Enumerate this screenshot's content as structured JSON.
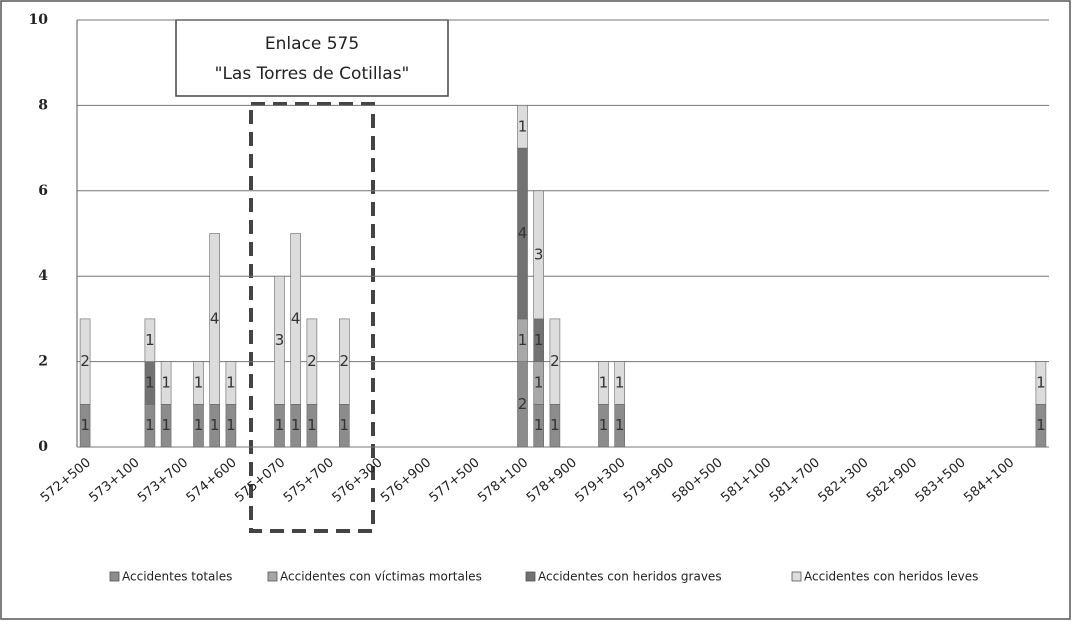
{
  "chart_data": {
    "type": "stacked_bar",
    "annotation": [
      "Enlace 575",
      "\"Las Torres de Cotillas\""
    ],
    "categories": [
      "572+500",
      null,
      null,
      "573+100",
      null,
      null,
      "573+700",
      null,
      null,
      "574+600",
      null,
      null,
      "575+070",
      null,
      null,
      "575+700",
      null,
      null,
      "576+300",
      null,
      null,
      "576+900",
      null,
      null,
      "577+500",
      null,
      null,
      "578+100",
      null,
      null,
      "578+900",
      null,
      null,
      "579+300",
      null,
      null,
      "579+900",
      null,
      null,
      "580+500",
      null,
      null,
      "581+100",
      null,
      null,
      "581+700",
      null,
      null,
      "582+300",
      null,
      null,
      "582+900",
      null,
      null,
      "583+500",
      null,
      null,
      "584+100",
      null,
      null
    ],
    "series": [
      {
        "name": "Accidentes totales",
        "color": "#8c8c8c",
        "values": [
          1,
          null,
          null,
          null,
          1,
          1,
          null,
          1,
          1,
          1,
          null,
          null,
          1,
          1,
          1,
          null,
          1,
          null,
          null,
          null,
          null,
          null,
          null,
          null,
          null,
          null,
          null,
          2,
          1,
          1,
          null,
          null,
          1,
          1,
          null,
          null,
          null,
          null,
          null,
          null,
          null,
          null,
          null,
          null,
          null,
          null,
          null,
          null,
          null,
          null,
          null,
          null,
          null,
          null,
          null,
          null,
          null,
          null,
          null,
          1
        ]
      },
      {
        "name": "Accidentes con víctimas mortales",
        "color": "#a8a8a8",
        "values": [
          null,
          null,
          null,
          null,
          null,
          null,
          null,
          null,
          null,
          null,
          null,
          null,
          null,
          null,
          null,
          null,
          null,
          null,
          null,
          null,
          null,
          null,
          null,
          null,
          null,
          null,
          null,
          1,
          1,
          null,
          null,
          null,
          null,
          null,
          null,
          null,
          null,
          null,
          null,
          null,
          null,
          null,
          null,
          null,
          null,
          null,
          null,
          null,
          null,
          null,
          null,
          null,
          null,
          null,
          null,
          null,
          null,
          null,
          null,
          null
        ]
      },
      {
        "name": "Accidentes con heridos graves",
        "color": "#727272",
        "values": [
          null,
          null,
          null,
          null,
          1,
          null,
          null,
          null,
          null,
          null,
          null,
          null,
          null,
          null,
          null,
          null,
          null,
          null,
          null,
          null,
          null,
          null,
          null,
          null,
          null,
          null,
          null,
          4,
          1,
          null,
          null,
          null,
          null,
          null,
          null,
          null,
          null,
          null,
          null,
          null,
          null,
          null,
          null,
          null,
          null,
          null,
          null,
          null,
          null,
          null,
          null,
          null,
          null,
          null,
          null,
          null,
          null,
          null,
          null,
          null
        ]
      },
      {
        "name": "Accidentes con heridos leves",
        "color": "#dcdcdc",
        "values": [
          2,
          null,
          null,
          null,
          1,
          1,
          null,
          1,
          4,
          1,
          null,
          null,
          3,
          4,
          2,
          null,
          2,
          null,
          null,
          null,
          null,
          null,
          null,
          null,
          null,
          null,
          null,
          1,
          3,
          2,
          null,
          null,
          1,
          1,
          null,
          null,
          null,
          null,
          null,
          null,
          null,
          null,
          null,
          null,
          null,
          null,
          null,
          null,
          null,
          null,
          null,
          null,
          null,
          null,
          null,
          null,
          null,
          null,
          null,
          1
        ]
      }
    ],
    "ylim": [
      0,
      10
    ],
    "yticks": [
      0,
      2,
      4,
      6,
      8,
      10
    ],
    "grid": true,
    "legend": "bottom"
  }
}
